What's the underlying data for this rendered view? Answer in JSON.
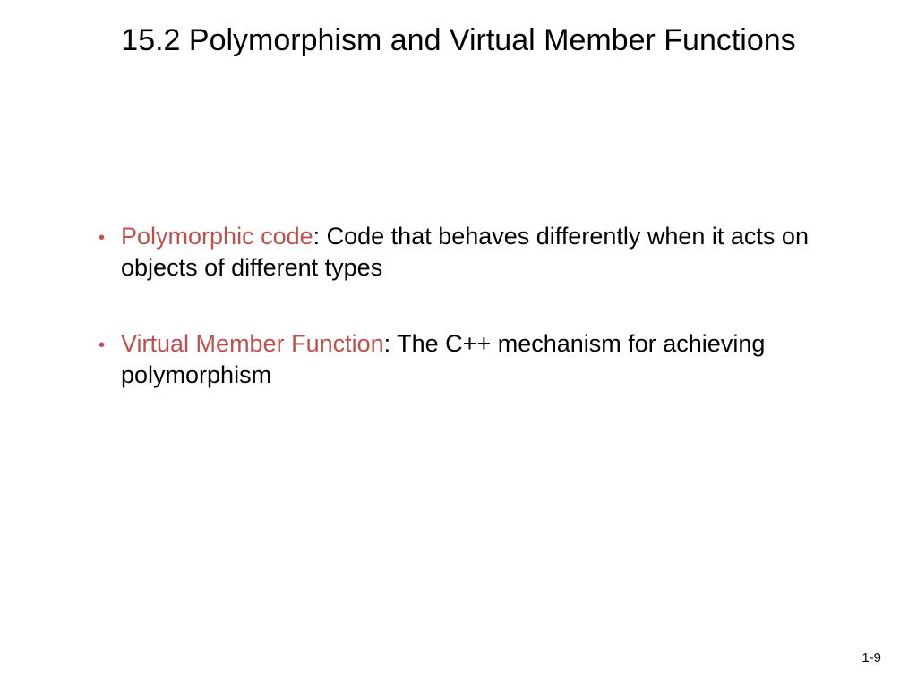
{
  "slide": {
    "title": "15.2  Polymorphism and Virtual Member Functions",
    "bullets": [
      {
        "term": "Polymorphic code",
        "definition": ": Code that behaves differently when it acts on objects of different types"
      },
      {
        "term": "Virtual Member Function",
        "definition": ": The C++ mechanism for achieving polymorphism"
      }
    ],
    "page_number": "1-9"
  },
  "colors": {
    "background": "#ffffff",
    "text": "#000000",
    "accent": "#c0504d"
  },
  "typography": {
    "title_fontsize": 34,
    "body_fontsize": 27,
    "page_number_fontsize": 15
  }
}
